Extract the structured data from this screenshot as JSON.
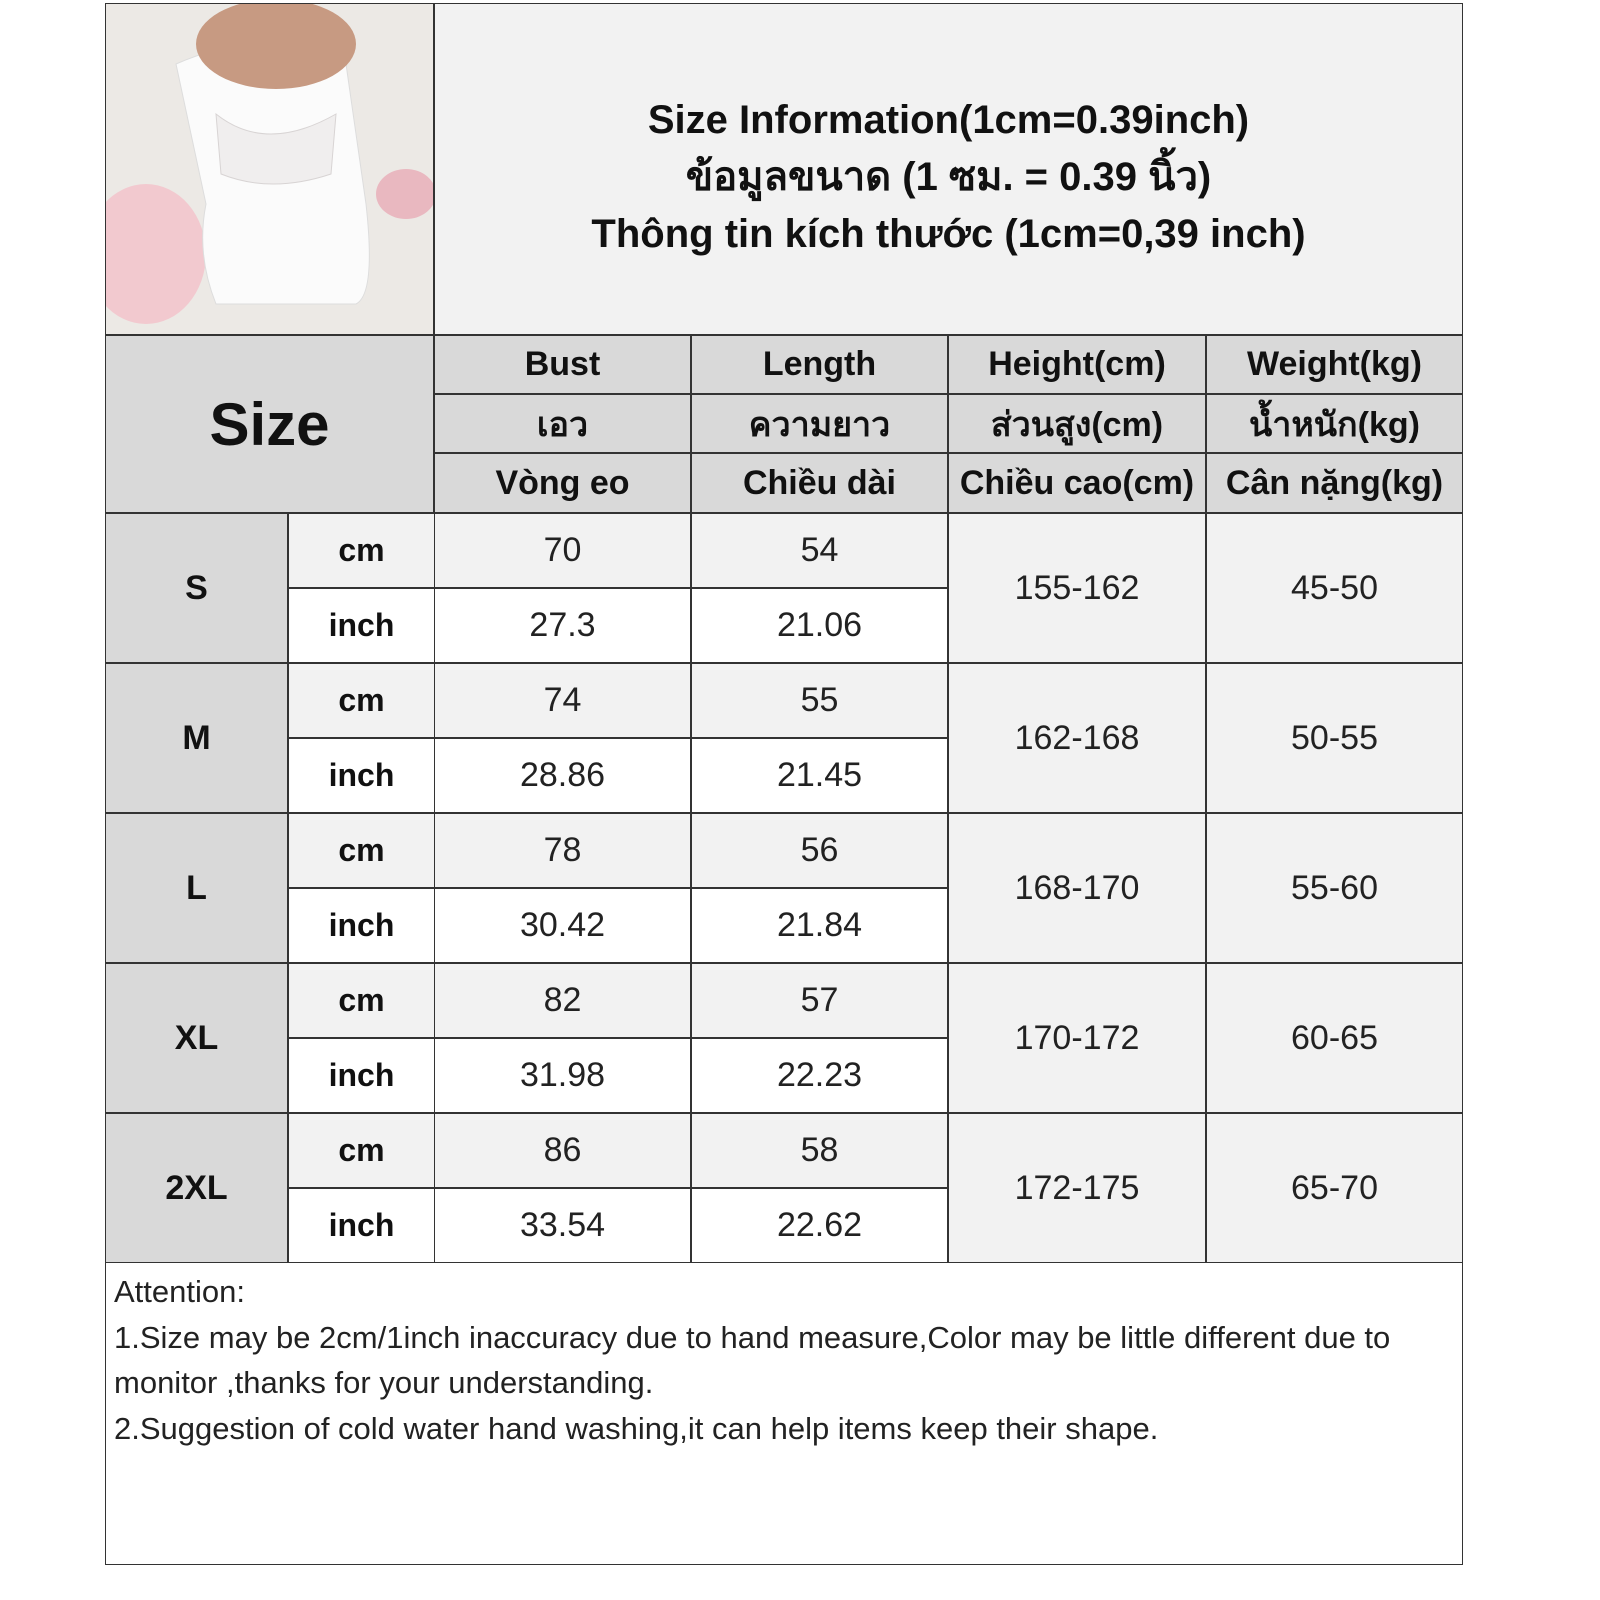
{
  "title_lines": [
    "Size Information(1cm=0.39inch)",
    "ข้อมูลขนาด (1 ซม. = 0.39 นิ้ว)",
    "Thông tin kích thước (1cm=0,39 inch)"
  ],
  "size_header": "Size",
  "columns": [
    {
      "en": "Bust",
      "th": "เอว",
      "vi": "Vòng eo"
    },
    {
      "en": "Length",
      "th": "ความยาว",
      "vi": "Chiều dài"
    },
    {
      "en": "Height(cm)",
      "th": "ส่วนสูง(cm)",
      "vi": "Chiều cao(cm)"
    },
    {
      "en": "Weight(kg)",
      "th": "น้ำหนัก(kg)",
      "vi": "Cân nặng(kg)"
    }
  ],
  "units": {
    "cm": "cm",
    "inch": "inch"
  },
  "rows": [
    {
      "size": "S",
      "bust_cm": "70",
      "length_cm": "54",
      "bust_inch": "27.3",
      "length_inch": "21.06",
      "height": "155-162",
      "weight": "45-50"
    },
    {
      "size": "M",
      "bust_cm": "74",
      "length_cm": "55",
      "bust_inch": "28.86",
      "length_inch": "21.45",
      "height": "162-168",
      "weight": "50-55"
    },
    {
      "size": "L",
      "bust_cm": "78",
      "length_cm": "56",
      "bust_inch": "30.42",
      "length_inch": "21.84",
      "height": "168-170",
      "weight": "55-60"
    },
    {
      "size": "XL",
      "bust_cm": "82",
      "length_cm": "57",
      "bust_inch": "31.98",
      "length_inch": "22.23",
      "height": "170-172",
      "weight": "60-65"
    },
    {
      "size": "2XL",
      "bust_cm": "86",
      "length_cm": "58",
      "bust_inch": "33.54",
      "length_inch": "22.62",
      "height": "172-175",
      "weight": "65-70"
    }
  ],
  "notes": [
    "Attention:",
    "1.Size may be 2cm/1inch inaccuracy due to hand measure,Color may be little different due to monitor ,thanks for your understanding.",
    "2.Suggestion of cold water hand washing,it can help items keep their shape."
  ]
}
